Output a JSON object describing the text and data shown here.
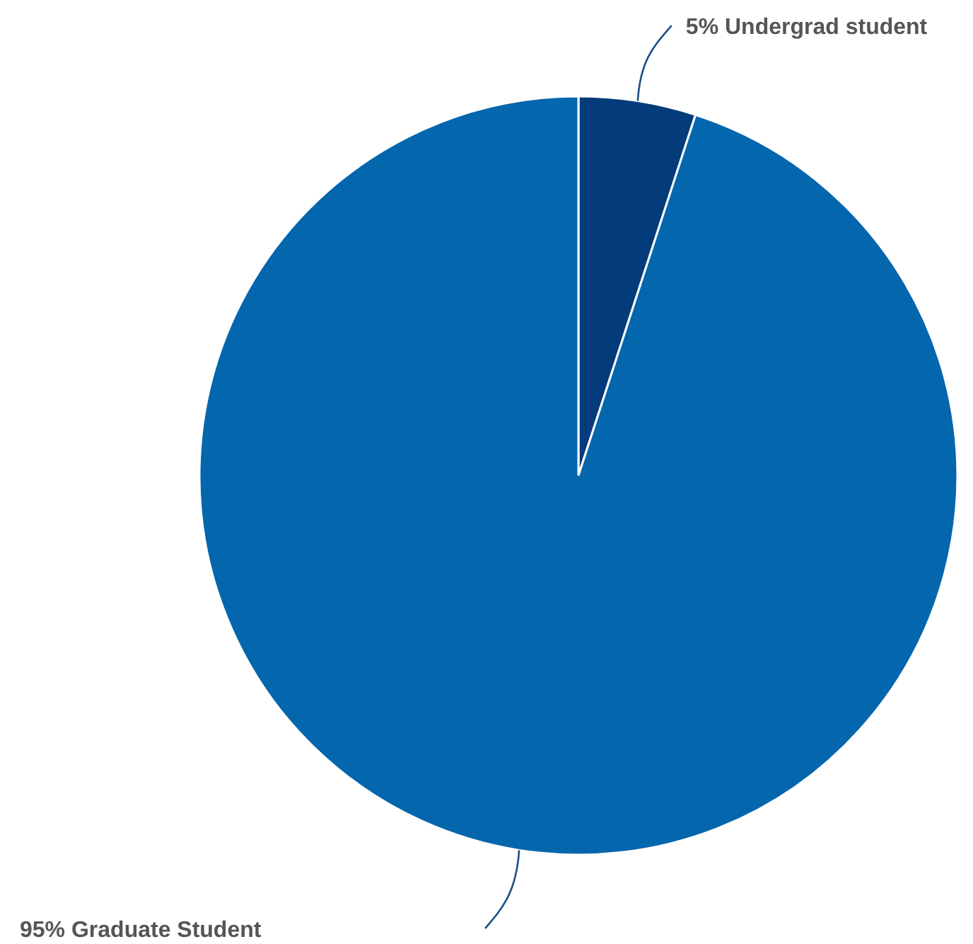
{
  "chart_data": {
    "type": "pie",
    "categories": [
      "Undergrad student",
      "Graduate Student"
    ],
    "values": [
      5,
      95
    ],
    "colors": [
      "#043b7a",
      "#0466ad"
    ],
    "value_labels": [
      "5%",
      "95%"
    ]
  }
}
